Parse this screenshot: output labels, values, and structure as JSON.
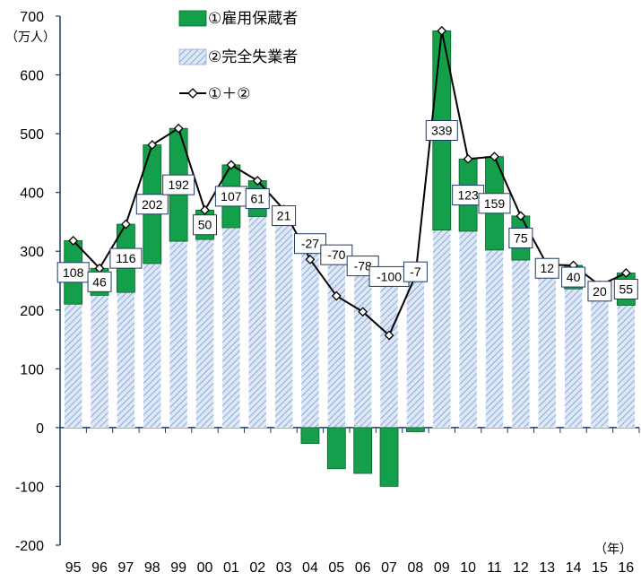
{
  "chart_data": {
    "type": "bar",
    "ylabel": "（万人）",
    "xlabel": "（年）",
    "ylim": [
      -200,
      700
    ],
    "yticks": [
      -200,
      -100,
      0,
      100,
      200,
      300,
      400,
      500,
      600,
      700
    ],
    "categories": [
      "95",
      "96",
      "97",
      "98",
      "99",
      "00",
      "01",
      "02",
      "03",
      "04",
      "05",
      "06",
      "07",
      "08",
      "09",
      "10",
      "11",
      "12",
      "13",
      "14",
      "15",
      "16"
    ],
    "series": [
      {
        "name": "①雇用保蔵者",
        "kind": "stacked-bar",
        "color": "#14a04a",
        "values": [
          108,
          46,
          116,
          202,
          192,
          50,
          107,
          61,
          21,
          -27,
          -70,
          -78,
          -100,
          -7,
          339,
          123,
          159,
          75,
          12,
          40,
          20,
          55
        ]
      },
      {
        "name": "②完全失業者",
        "kind": "stacked-bar",
        "color": "#b8cbe8",
        "values": [
          210,
          225,
          230,
          279,
          317,
          320,
          340,
          359,
          350,
          313,
          294,
          275,
          257,
          265,
          336,
          334,
          302,
          285,
          265,
          236,
          222,
          208
        ]
      },
      {
        "name": "①＋②",
        "kind": "line",
        "color": "#000000",
        "values": [
          318,
          271,
          346,
          481,
          509,
          370,
          447,
          420,
          371,
          286,
          224,
          197,
          157,
          258,
          675,
          457,
          461,
          360,
          277,
          276,
          242,
          263
        ]
      }
    ],
    "data_labels": [
      "108",
      "46",
      "116",
      "202",
      "192",
      "50",
      "107",
      "61",
      "21",
      "-27",
      "-70",
      "-78",
      "-100",
      "-7",
      "339",
      "123",
      "159",
      "75",
      "12",
      "40",
      "20",
      "55"
    ],
    "legend": {
      "placement": "top-center"
    }
  }
}
